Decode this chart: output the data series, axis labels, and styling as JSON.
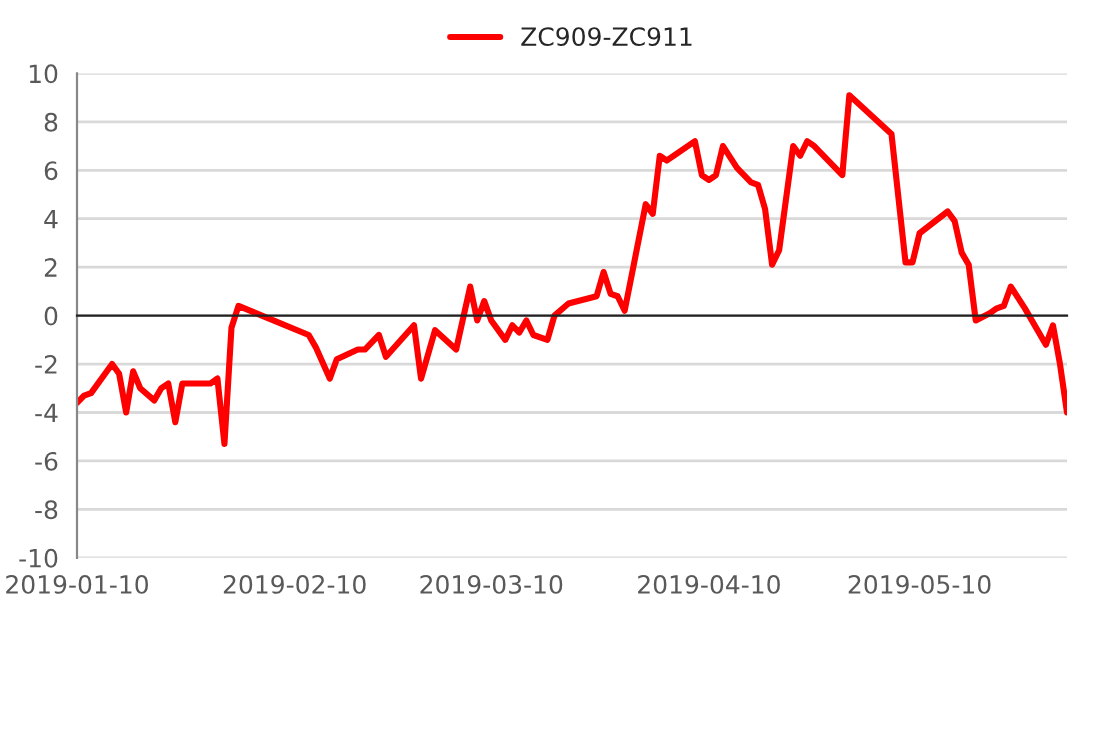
{
  "chart_data": {
    "type": "line",
    "x": [
      "2019-01-10",
      "2019-01-11",
      "2019-01-12",
      "2019-01-15",
      "2019-01-16",
      "2019-01-17",
      "2019-01-18",
      "2019-01-19",
      "2019-01-21",
      "2019-01-22",
      "2019-01-23",
      "2019-01-24",
      "2019-01-25",
      "2019-01-29",
      "2019-01-30",
      "2019-01-31",
      "2019-02-01",
      "2019-02-02",
      "2019-02-12",
      "2019-02-13",
      "2019-02-15",
      "2019-02-16",
      "2019-02-19",
      "2019-02-20",
      "2019-02-22",
      "2019-02-23",
      "2019-02-27",
      "2019-02-28",
      "2019-03-02",
      "2019-03-05",
      "2019-03-07",
      "2019-03-08",
      "2019-03-09",
      "2019-03-10",
      "2019-03-12",
      "2019-03-13",
      "2019-03-14",
      "2019-03-15",
      "2019-03-16",
      "2019-03-18",
      "2019-03-19",
      "2019-03-21",
      "2019-03-25",
      "2019-03-26",
      "2019-03-27",
      "2019-03-28",
      "2019-03-29",
      "2019-04-01",
      "2019-04-02",
      "2019-04-03",
      "2019-04-04",
      "2019-04-08",
      "2019-04-09",
      "2019-04-10",
      "2019-04-11",
      "2019-04-12",
      "2019-04-14",
      "2019-04-16",
      "2019-04-17",
      "2019-04-18",
      "2019-04-19",
      "2019-04-20",
      "2019-04-22",
      "2019-04-23",
      "2019-04-24",
      "2019-04-25",
      "2019-04-29",
      "2019-04-30",
      "2019-05-06",
      "2019-05-08",
      "2019-05-09",
      "2019-05-10",
      "2019-05-14",
      "2019-05-15",
      "2019-05-16",
      "2019-05-17",
      "2019-05-18",
      "2019-05-20",
      "2019-05-21",
      "2019-05-22",
      "2019-05-23",
      "2019-05-25",
      "2019-05-28",
      "2019-05-29",
      "2019-05-30",
      "2019-05-31"
    ],
    "series": [
      {
        "name": "ZC909-ZC911",
        "color": "#ff0000",
        "values": [
          -3.6,
          -3.3,
          -3.2,
          -2.0,
          -2.4,
          -4.0,
          -2.3,
          -3.0,
          -3.5,
          -3.0,
          -2.8,
          -4.4,
          -2.8,
          -2.8,
          -2.6,
          -5.3,
          -0.5,
          0.4,
          -0.8,
          -1.3,
          -2.6,
          -1.8,
          -1.4,
          -1.4,
          -0.8,
          -1.7,
          -0.4,
          -2.6,
          -0.6,
          -1.4,
          1.2,
          -0.2,
          0.6,
          -0.2,
          -1.0,
          -0.4,
          -0.7,
          -0.2,
          -0.8,
          -1.0,
          0,
          0.5,
          0.8,
          1.8,
          0.9,
          0.8,
          0.2,
          4.6,
          4.2,
          6.6,
          6.4,
          7.2,
          5.8,
          5.6,
          5.8,
          7.0,
          6.1,
          5.5,
          5.4,
          4.4,
          2.1,
          2.7,
          7.0,
          6.6,
          7.2,
          7.0,
          5.8,
          9.1,
          7.5,
          2.2,
          2.2,
          3.4,
          4.3,
          3.9,
          2.6,
          2.1,
          -0.2,
          0.1,
          0.3,
          0.4,
          1.2,
          0.3,
          -1.2,
          -0.4,
          -2.0,
          -4.0
        ]
      }
    ],
    "xlim": [
      "2019-01-10",
      "2019-05-31"
    ],
    "xticks": [
      "2019-01-10",
      "2019-02-10",
      "2019-03-10",
      "2019-04-10",
      "2019-05-10"
    ],
    "ylim": [
      -10,
      10
    ],
    "yticks": [
      -10,
      -8,
      -6,
      -4,
      -2,
      0,
      2,
      4,
      6,
      8,
      10
    ],
    "grid": "y",
    "legend": "top",
    "marker": "none",
    "line_style": "solid"
  }
}
